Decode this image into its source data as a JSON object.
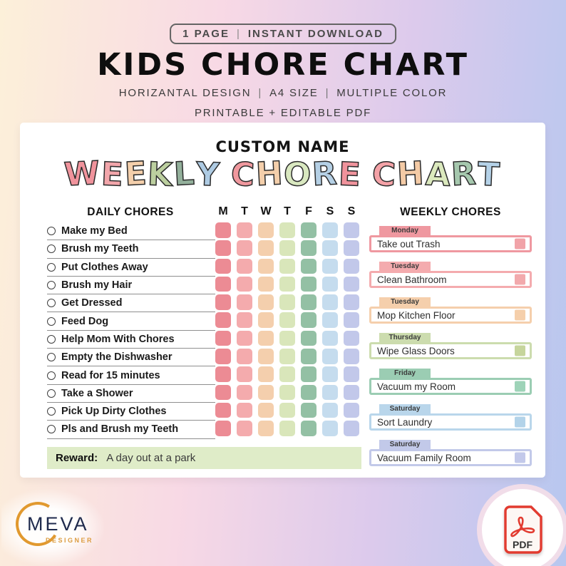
{
  "header": {
    "badge": {
      "left": "1 PAGE",
      "separator": "|",
      "right": "INSTANT DOWNLOAD"
    },
    "title": "KIDS CHORE CHART",
    "subtitle_parts": [
      "HORIZANTAL DESIGN",
      "A4 SIZE",
      "MULTIPLE COLOR"
    ],
    "subtitle_separator": "|",
    "subtitle2": "PRINTABLE + EDITABLE PDF"
  },
  "chart": {
    "custom_name": "CUSTOM NAME",
    "title_letters": [
      {
        "ch": "W",
        "color": "#f0939c"
      },
      {
        "ch": "E",
        "color": "#f2a6ab"
      },
      {
        "ch": "E",
        "color": "#f4cfab"
      },
      {
        "ch": "K",
        "color": "#bccf9f"
      },
      {
        "ch": "L",
        "color": "#93b09b"
      },
      {
        "ch": "Y",
        "color": "#aecbe3"
      },
      {
        "ch": " ",
        "color": ""
      },
      {
        "ch": "C",
        "color": "#f0989e"
      },
      {
        "ch": "H",
        "color": "#f4cfab"
      },
      {
        "ch": "O",
        "color": "#d9e8c0"
      },
      {
        "ch": "R",
        "color": "#b5d0e5"
      },
      {
        "ch": "E",
        "color": "#f0939c"
      },
      {
        "ch": " ",
        "color": ""
      },
      {
        "ch": "C",
        "color": "#f4a2a7"
      },
      {
        "ch": "H",
        "color": "#f4cba6"
      },
      {
        "ch": "A",
        "color": "#dbe9bd"
      },
      {
        "ch": "R",
        "color": "#a6c8ae"
      },
      {
        "ch": "T",
        "color": "#b5d2e8"
      }
    ],
    "daily": {
      "heading": "DAILY CHORES",
      "items": [
        "Make my Bed",
        "Brush my Teeth",
        "Put Clothes Away",
        "Brush my Hair",
        "Get Dressed",
        "Feed Dog",
        "Help Mom With Chores",
        "Empty the Dishwasher",
        "Read for 15 minutes",
        "Take a Shower",
        "Pick Up Dirty Clothes",
        "Pls and Brush my Teeth"
      ]
    },
    "days": [
      "M",
      "T",
      "W",
      "T",
      "F",
      "S",
      "S"
    ],
    "day_colors": [
      "#ec8b94",
      "#f4abad",
      "#f4cfad",
      "#d9e6ba",
      "#93c0a4",
      "#c5dcee",
      "#c2c8ea"
    ],
    "grid_rows": 12,
    "weekly": {
      "heading": "WEEKLY CHORES",
      "items": [
        {
          "day": "Monday",
          "chore": "Take out Trash",
          "border": "#ef98a0",
          "square": "#f1a3a8"
        },
        {
          "day": "Tuesday",
          "chore": "Clean Bathroom",
          "border": "#f4abae",
          "square": "#f2a9ac"
        },
        {
          "day": "Tuesday",
          "chore": "Mop Kitchen Floor",
          "border": "#f5cfac",
          "square": "#f5cfab"
        },
        {
          "day": "Thursday",
          "chore": "Wipe Glass Doors",
          "border": "#ccdcae",
          "square": "#c6d59c"
        },
        {
          "day": "Friday",
          "chore": "Vacuum my Room",
          "border": "#9bcdb3",
          "square": "#9ed3b8"
        },
        {
          "day": "Saturday",
          "chore": "Sort Laundry",
          "border": "#b9d6eb",
          "square": "#b3d3e9"
        },
        {
          "day": "Saturday",
          "chore": "Vacuum Family Room",
          "border": "#c2c9e9",
          "square": "#c3c9ea"
        }
      ]
    },
    "reward": {
      "label": "Reward:",
      "value": "A day out at a park",
      "bg": "#dfecc8"
    }
  },
  "footer": {
    "brand": "MEVA",
    "brand_sub": "DESIGNER",
    "pdf_label": "PDF",
    "brand_accent": "#e1992f",
    "pdf_red": "#e23b30"
  }
}
